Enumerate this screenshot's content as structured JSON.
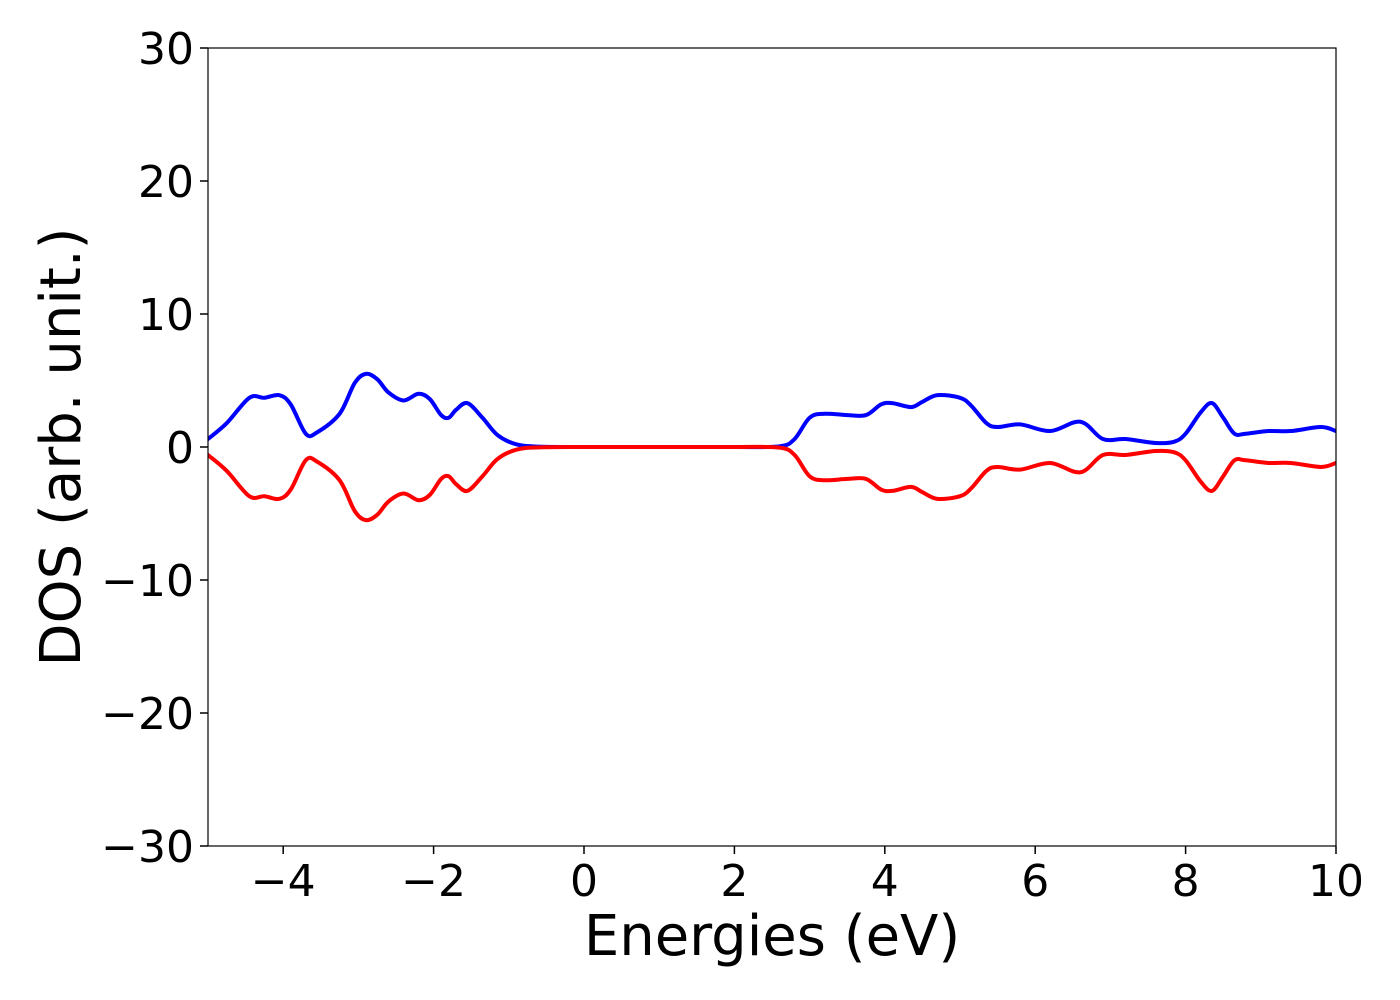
{
  "chart_data": {
    "type": "line",
    "title": "",
    "xlabel": "Energies (eV)",
    "ylabel": "DOS (arb. unit.)",
    "xlim": [
      -5,
      10
    ],
    "ylim": [
      -30,
      30
    ],
    "xticks": [
      -4,
      -2,
      0,
      2,
      4,
      6,
      8,
      10
    ],
    "yticks": [
      -30,
      -20,
      -10,
      0,
      10,
      20,
      30
    ],
    "xtick_labels": [
      "−4",
      "−2",
      "0",
      "2",
      "4",
      "6",
      "8",
      "10"
    ],
    "ytick_labels": [
      "−30",
      "−20",
      "−10",
      "0",
      "10",
      "20",
      "30"
    ],
    "grid": false,
    "series": [
      {
        "color": "#0000ff",
        "x": [
          -5.0,
          -4.75,
          -4.45,
          -4.25,
          -4.05,
          -3.9,
          -3.7,
          -3.55,
          -3.25,
          -3.05,
          -2.9,
          -2.75,
          -2.6,
          -2.4,
          -2.2,
          -2.05,
          -1.9,
          -1.8,
          -1.7,
          -1.55,
          -1.35,
          -1.15,
          -0.9,
          -0.6,
          0.0,
          1.0,
          2.0,
          2.6,
          2.8,
          3.0,
          3.2,
          3.5,
          3.75,
          3.95,
          4.1,
          4.35,
          4.5,
          4.7,
          5.0,
          5.15,
          5.35,
          5.5,
          5.8,
          6.2,
          6.6,
          6.9,
          7.2,
          7.6,
          7.85,
          8.0,
          8.2,
          8.35,
          8.5,
          8.65,
          8.8,
          9.1,
          9.4,
          9.8,
          10.0
        ],
        "y": [
          0.6,
          1.8,
          3.7,
          3.7,
          3.9,
          3.2,
          1.0,
          1.1,
          2.5,
          4.8,
          5.5,
          5.1,
          4.1,
          3.5,
          4.0,
          3.6,
          2.4,
          2.2,
          2.8,
          3.3,
          2.2,
          0.9,
          0.2,
          0.03,
          0.0,
          0.0,
          0.0,
          0.05,
          0.6,
          2.2,
          2.5,
          2.4,
          2.4,
          3.2,
          3.3,
          3.0,
          3.4,
          3.9,
          3.7,
          3.1,
          1.8,
          1.5,
          1.7,
          1.2,
          1.9,
          0.6,
          0.6,
          0.3,
          0.4,
          1.0,
          2.6,
          3.3,
          2.2,
          1.0,
          1.0,
          1.2,
          1.2,
          1.5,
          1.2
        ]
      },
      {
        "color": "#ff0000",
        "x": [
          -5.0,
          -4.75,
          -4.45,
          -4.25,
          -4.05,
          -3.9,
          -3.7,
          -3.55,
          -3.25,
          -3.05,
          -2.9,
          -2.75,
          -2.6,
          -2.4,
          -2.2,
          -2.05,
          -1.9,
          -1.8,
          -1.7,
          -1.55,
          -1.35,
          -1.15,
          -0.9,
          -0.6,
          0.0,
          1.0,
          2.0,
          2.6,
          2.8,
          3.0,
          3.2,
          3.5,
          3.75,
          3.95,
          4.1,
          4.35,
          4.5,
          4.7,
          5.0,
          5.15,
          5.35,
          5.5,
          5.8,
          6.2,
          6.6,
          6.9,
          7.2,
          7.6,
          7.85,
          8.0,
          8.2,
          8.35,
          8.5,
          8.65,
          8.8,
          9.1,
          9.4,
          9.8,
          10.0
        ],
        "y": [
          -0.6,
          -1.8,
          -3.7,
          -3.7,
          -3.9,
          -3.2,
          -1.0,
          -1.1,
          -2.5,
          -4.8,
          -5.5,
          -5.1,
          -4.1,
          -3.5,
          -4.0,
          -3.6,
          -2.4,
          -2.2,
          -2.8,
          -3.3,
          -2.2,
          -0.9,
          -0.2,
          -0.03,
          0.0,
          0.0,
          0.0,
          -0.05,
          -0.6,
          -2.2,
          -2.5,
          -2.4,
          -2.4,
          -3.2,
          -3.3,
          -3.0,
          -3.4,
          -3.9,
          -3.7,
          -3.1,
          -1.8,
          -1.5,
          -1.7,
          -1.2,
          -1.9,
          -0.6,
          -0.6,
          -0.3,
          -0.4,
          -1.0,
          -2.6,
          -3.3,
          -2.2,
          -1.0,
          -1.0,
          -1.2,
          -1.2,
          -1.5,
          -1.2
        ]
      }
    ]
  }
}
